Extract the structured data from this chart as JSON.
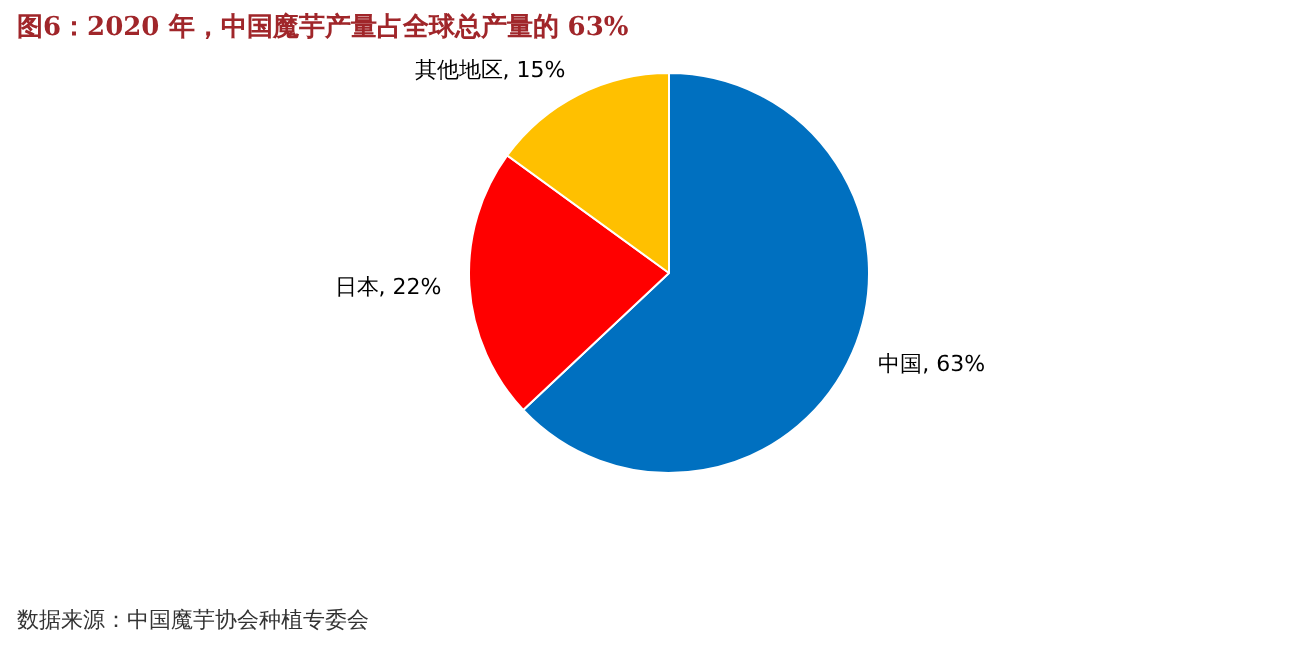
{
  "chart_data": {
    "type": "pie",
    "title": "图6：2020 年，中国魔芋产量占全球总产量的 63%",
    "categories": [
      "中国",
      "日本",
      "其他地区"
    ],
    "values": [
      63,
      22,
      15
    ],
    "value_labels": [
      "63%",
      "22%",
      "15%"
    ],
    "colors": [
      "#0070c0",
      "#ff0000",
      "#ffc000"
    ],
    "annotations": [
      "数据来源：中国魔芋协会种植专委会"
    ]
  }
}
